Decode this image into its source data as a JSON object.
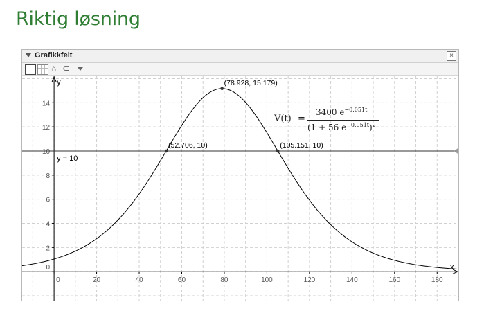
{
  "heading": "Riktig løsning",
  "panel": {
    "title": "Grafikkfelt",
    "close_glyph": "×",
    "toolbar": {
      "icons": [
        "graphics-view-icon",
        "grid-toggle-icon",
        "home-icon",
        "undo-icon",
        "chevron-down-icon"
      ],
      "home_glyph": "⌂",
      "undo_glyph": "⊂"
    }
  },
  "formula": {
    "lhs": "V(t)",
    "eq": "=",
    "num_base": "3400 e",
    "num_exp": "−0.051t",
    "den_pre": "(1 + 56 e",
    "den_exp": "−0.051t",
    "den_post": ")",
    "den_pow": "2"
  },
  "chart_data": {
    "type": "line",
    "function": "3400*exp(-0.051*t)/(1+56*exp(-0.051*t))^2",
    "xlabel": "x",
    "ylabel": "y",
    "xlim": [
      -15,
      190
    ],
    "ylim": [
      -2.4,
      16.2
    ],
    "x_ticks": [
      0,
      20,
      40,
      60,
      80,
      100,
      120,
      140,
      160,
      180
    ],
    "y_ticks": [
      0,
      2,
      4,
      6,
      8,
      10,
      12,
      14
    ],
    "grid": true,
    "hline": {
      "y": 10,
      "label": "y = 10"
    },
    "points": [
      {
        "x": 78.928,
        "y": 15.179,
        "label": "(78.928, 15.179)"
      },
      {
        "x": 52.706,
        "y": 10,
        "label": "(52.706, 10)"
      },
      {
        "x": 105.151,
        "y": 10,
        "label": "(105.151, 10)"
      }
    ],
    "colors": {
      "curve": "#000000",
      "grid": "#d0d0d0",
      "axis": "#000000"
    }
  }
}
